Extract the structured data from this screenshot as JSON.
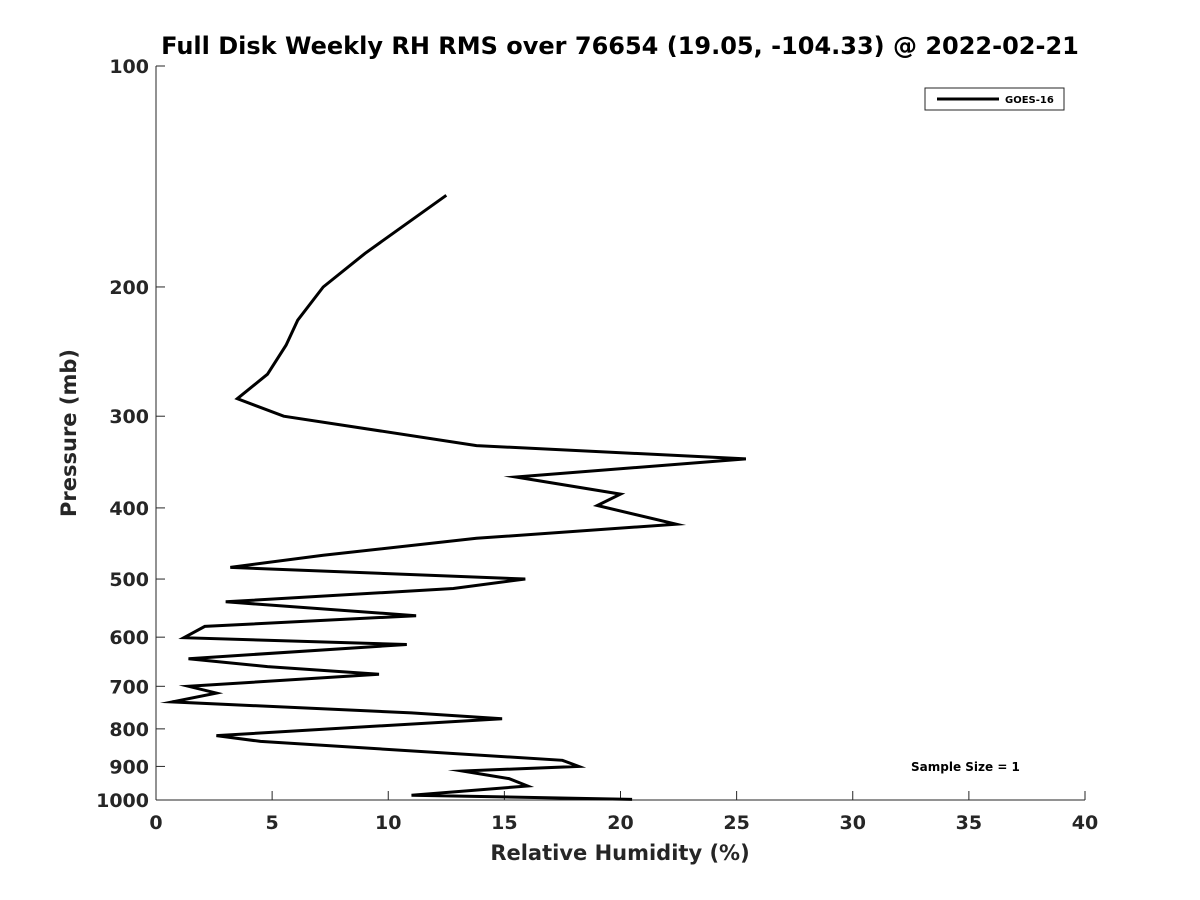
{
  "chart_data": {
    "type": "line",
    "title": "Full Disk Weekly RH RMS over 76654 (19.05, -104.33) @ 2022-02-21",
    "xlabel": "Relative Humidity (%)",
    "ylabel": "Pressure (mb)",
    "xlim": [
      0,
      40
    ],
    "ylim": [
      1000,
      100
    ],
    "yscale": "log",
    "y_inverted": true,
    "xticks": [
      0,
      5,
      10,
      15,
      20,
      25,
      30,
      35,
      40
    ],
    "yticks": [
      100,
      200,
      300,
      400,
      500,
      600,
      700,
      800,
      900,
      1000
    ],
    "grid": false,
    "legend": {
      "position": "top-right",
      "entries": [
        "GOES-16"
      ]
    },
    "annotation": "Sample Size = 1",
    "series": [
      {
        "name": "GOES-16",
        "color": "#000000",
        "points": [
          [
            12.5,
            150
          ],
          [
            9.0,
            180
          ],
          [
            7.2,
            200
          ],
          [
            6.1,
            222
          ],
          [
            5.6,
            240
          ],
          [
            4.8,
            263
          ],
          [
            3.5,
            284
          ],
          [
            5.5,
            300
          ],
          [
            13.8,
            329
          ],
          [
            25.4,
            343
          ],
          [
            15.5,
            363
          ],
          [
            20.0,
            383
          ],
          [
            19.0,
            397
          ],
          [
            22.4,
            421
          ],
          [
            13.8,
            440
          ],
          [
            7.2,
            464
          ],
          [
            3.2,
            482
          ],
          [
            15.9,
            500
          ],
          [
            12.8,
            515
          ],
          [
            3.0,
            537
          ],
          [
            11.2,
            561
          ],
          [
            2.1,
            580
          ],
          [
            1.2,
            601
          ],
          [
            10.8,
            614
          ],
          [
            1.4,
            642
          ],
          [
            4.8,
            658
          ],
          [
            9.6,
            674
          ],
          [
            1.4,
            700
          ],
          [
            2.6,
            715
          ],
          [
            0.7,
            735
          ],
          [
            11.0,
            761
          ],
          [
            14.9,
            775
          ],
          [
            2.6,
            817
          ],
          [
            4.5,
            832
          ],
          [
            17.5,
            883
          ],
          [
            18.2,
            900
          ],
          [
            13.2,
            913
          ],
          [
            15.2,
            935
          ],
          [
            16.0,
            957
          ],
          [
            11.0,
            985
          ],
          [
            20.5,
            998
          ]
        ]
      }
    ]
  }
}
